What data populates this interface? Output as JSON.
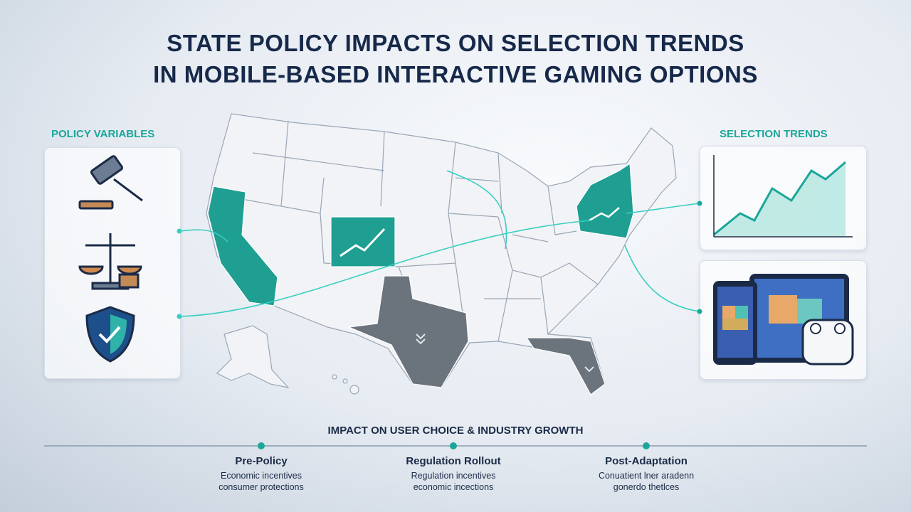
{
  "header": {
    "title_line1": "STATE POLICY IMPACTS ON SELECTION TRENDS",
    "title_line2": "IN MOBILE-BASED INTERACTIVE GAMING OPTIONS"
  },
  "left_panel": {
    "label": "POLICY VARIABLES"
  },
  "right_panel": {
    "label": "SELECTION TRENDS"
  },
  "timeline": {
    "title": "IMPACT ON USER CHOICE & INDUSTRY GROWTH",
    "stages": [
      {
        "name": "Pre-Policy",
        "lines": [
          "Economic incentives",
          "consumer protections"
        ]
      },
      {
        "name": "Regulation Rollout",
        "lines": [
          "Regulation incentives",
          "economic incections"
        ]
      },
      {
        "name": "Post-Adaptation",
        "lines": [
          "Conuatient lner aradenn",
          "gonerdo thetlces"
        ]
      }
    ]
  }
}
